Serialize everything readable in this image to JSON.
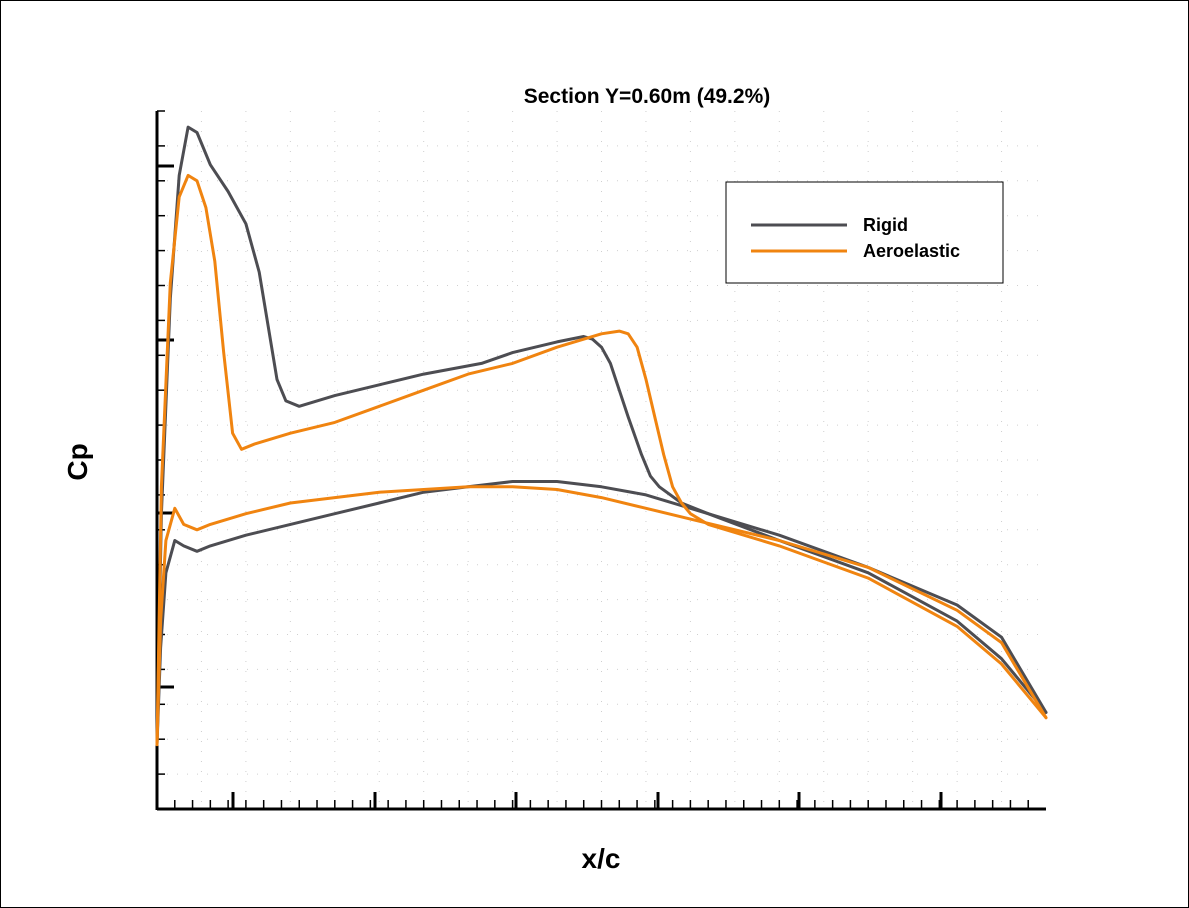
{
  "chart_data": {
    "type": "line",
    "title": "Section Y=0.60m (49.2%)",
    "xlabel": "x/c",
    "ylabel": "Cp",
    "grid": true,
    "legend_position": "top-right",
    "series": [
      {
        "name": "Rigid",
        "color": "#4d4d52",
        "curves": [
          {
            "surface": "upper",
            "points": [
              [
                0.0,
                0.12
              ],
              [
                0.005,
                0.55
              ],
              [
                0.015,
                0.95
              ],
              [
                0.025,
                1.18
              ],
              [
                0.035,
                1.27
              ],
              [
                0.045,
                1.26
              ],
              [
                0.06,
                1.2
              ],
              [
                0.08,
                1.15
              ],
              [
                0.1,
                1.09
              ],
              [
                0.115,
                1.0
              ],
              [
                0.125,
                0.9
              ],
              [
                0.135,
                0.8
              ],
              [
                0.145,
                0.76
              ],
              [
                0.16,
                0.75
              ],
              [
                0.2,
                0.77
              ],
              [
                0.25,
                0.79
              ],
              [
                0.3,
                0.81
              ],
              [
                0.365,
                0.83
              ],
              [
                0.4,
                0.85
              ],
              [
                0.45,
                0.87
              ],
              [
                0.48,
                0.88
              ],
              [
                0.49,
                0.875
              ],
              [
                0.5,
                0.86
              ],
              [
                0.51,
                0.83
              ],
              [
                0.52,
                0.78
              ],
              [
                0.53,
                0.73
              ],
              [
                0.545,
                0.66
              ],
              [
                0.555,
                0.62
              ],
              [
                0.565,
                0.6
              ],
              [
                0.59,
                0.57
              ],
              [
                0.62,
                0.55
              ],
              [
                0.7,
                0.5
              ],
              [
                0.8,
                0.44
              ],
              [
                0.9,
                0.35
              ],
              [
                0.95,
                0.28
              ],
              [
                1.0,
                0.18
              ]
            ]
          },
          {
            "surface": "lower",
            "points": [
              [
                0.0,
                0.12
              ],
              [
                0.004,
                0.3
              ],
              [
                0.01,
                0.44
              ],
              [
                0.02,
                0.5
              ],
              [
                0.03,
                0.49
              ],
              [
                0.045,
                0.48
              ],
              [
                0.06,
                0.49
              ],
              [
                0.1,
                0.51
              ],
              [
                0.15,
                0.53
              ],
              [
                0.2,
                0.55
              ],
              [
                0.25,
                0.57
              ],
              [
                0.3,
                0.59
              ],
              [
                0.35,
                0.6
              ],
              [
                0.4,
                0.61
              ],
              [
                0.45,
                0.61
              ],
              [
                0.5,
                0.6
              ],
              [
                0.55,
                0.585
              ],
              [
                0.6,
                0.56
              ],
              [
                0.7,
                0.51
              ],
              [
                0.8,
                0.45
              ],
              [
                0.9,
                0.38
              ],
              [
                0.95,
                0.32
              ],
              [
                1.0,
                0.18
              ]
            ]
          }
        ]
      },
      {
        "name": "Aeroelastic",
        "color": "#f08410",
        "curves": [
          {
            "surface": "upper",
            "points": [
              [
                0.0,
                0.12
              ],
              [
                0.005,
                0.6
              ],
              [
                0.015,
                0.98
              ],
              [
                0.025,
                1.14
              ],
              [
                0.035,
                1.18
              ],
              [
                0.045,
                1.17
              ],
              [
                0.055,
                1.12
              ],
              [
                0.065,
                1.02
              ],
              [
                0.075,
                0.85
              ],
              [
                0.085,
                0.7
              ],
              [
                0.095,
                0.67
              ],
              [
                0.11,
                0.68
              ],
              [
                0.15,
                0.7
              ],
              [
                0.2,
                0.72
              ],
              [
                0.25,
                0.75
              ],
              [
                0.3,
                0.78
              ],
              [
                0.35,
                0.81
              ],
              [
                0.4,
                0.83
              ],
              [
                0.45,
                0.86
              ],
              [
                0.5,
                0.885
              ],
              [
                0.52,
                0.89
              ],
              [
                0.53,
                0.885
              ],
              [
                0.54,
                0.86
              ],
              [
                0.55,
                0.8
              ],
              [
                0.56,
                0.73
              ],
              [
                0.57,
                0.66
              ],
              [
                0.58,
                0.6
              ],
              [
                0.59,
                0.57
              ],
              [
                0.6,
                0.55
              ],
              [
                0.62,
                0.53
              ],
              [
                0.7,
                0.49
              ],
              [
                0.8,
                0.43
              ],
              [
                0.9,
                0.34
              ],
              [
                0.95,
                0.27
              ],
              [
                1.0,
                0.17
              ]
            ]
          },
          {
            "surface": "lower",
            "points": [
              [
                0.0,
                0.12
              ],
              [
                0.004,
                0.35
              ],
              [
                0.01,
                0.5
              ],
              [
                0.02,
                0.56
              ],
              [
                0.03,
                0.53
              ],
              [
                0.045,
                0.52
              ],
              [
                0.06,
                0.53
              ],
              [
                0.1,
                0.55
              ],
              [
                0.15,
                0.57
              ],
              [
                0.2,
                0.58
              ],
              [
                0.25,
                0.59
              ],
              [
                0.3,
                0.595
              ],
              [
                0.35,
                0.6
              ],
              [
                0.4,
                0.6
              ],
              [
                0.45,
                0.595
              ],
              [
                0.5,
                0.58
              ],
              [
                0.55,
                0.56
              ],
              [
                0.6,
                0.54
              ],
              [
                0.7,
                0.5
              ],
              [
                0.8,
                0.45
              ],
              [
                0.9,
                0.37
              ],
              [
                0.95,
                0.31
              ],
              [
                1.0,
                0.17
              ]
            ]
          }
        ]
      }
    ]
  }
}
